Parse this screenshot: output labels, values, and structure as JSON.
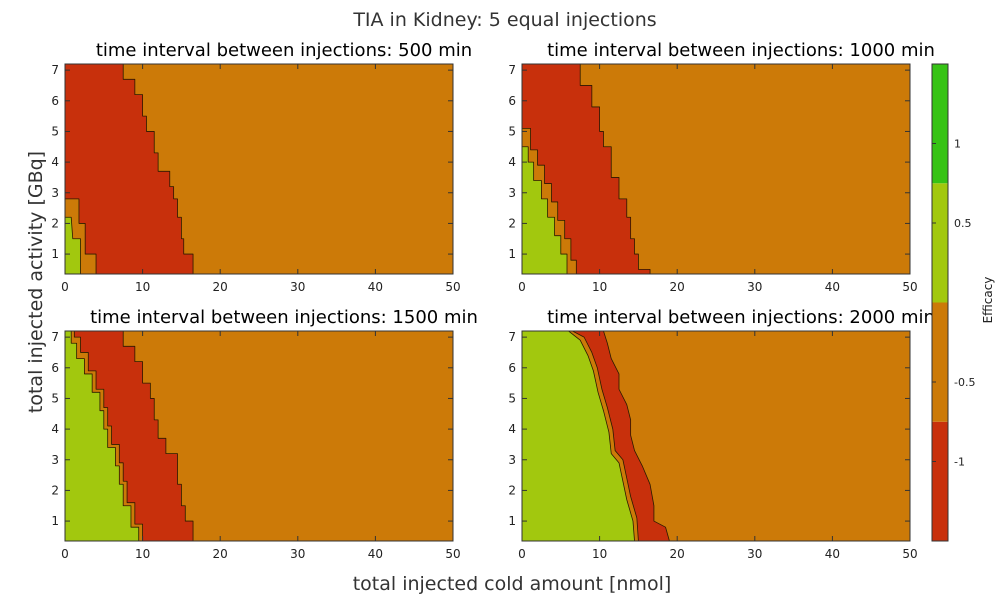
{
  "chart_data": {
    "type": "contour",
    "title": "TIA in Kidney: 5 equal injections",
    "xlabel": "total injected cold amount [nmol]",
    "ylabel": "total injected activity [GBq]",
    "xlim": [
      0,
      50
    ],
    "ylim": [
      0.35,
      7.2
    ],
    "xticks": [
      0,
      10,
      20,
      30,
      40,
      50
    ],
    "yticks": [
      1,
      2,
      3,
      4,
      5,
      6,
      7
    ],
    "grid": false,
    "colorbar": {
      "label": "Efficacy",
      "ticks": [
        "1",
        "0.5",
        "-0.5",
        "-1"
      ],
      "levels": [
        {
          "from": -1.5,
          "to": -0.75,
          "color": "#c8300c"
        },
        {
          "from": -0.75,
          "to": 0,
          "color": "#cc7a08"
        },
        {
          "from": 0,
          "to": 0.75,
          "color": "#a2c80e"
        },
        {
          "from": 0.75,
          "to": 1.5,
          "color": "#36c315"
        }
      ]
    },
    "region_colors": {
      "high_efficacy": "#a2c80e",
      "intermediate": "#cc7a08",
      "low_efficacy": "#c8300c"
    },
    "panels": [
      {
        "title": "time interval between injections: 500 min",
        "high_efficacy_boundary": [
          [
            0,
            0.35
          ],
          [
            2.0,
            0.35
          ],
          [
            2.0,
            1.5
          ],
          [
            1.0,
            1.5
          ],
          [
            0.8,
            2.2
          ],
          [
            0,
            2.2
          ]
        ],
        "inner_boundary": [
          [
            0,
            0.35
          ],
          [
            4.0,
            0.35
          ],
          [
            4.0,
            1.0
          ],
          [
            2.6,
            1.0
          ],
          [
            2.6,
            2.0
          ],
          [
            1.8,
            2.0
          ],
          [
            1.8,
            2.8
          ],
          [
            0,
            2.8
          ]
        ],
        "outer_boundary": [
          [
            16.5,
            0.35
          ],
          [
            16.5,
            1.0
          ],
          [
            15.3,
            1.0
          ],
          [
            15.3,
            1.5
          ],
          [
            15.0,
            1.5
          ],
          [
            15.0,
            2.2
          ],
          [
            14.5,
            2.2
          ],
          [
            14.5,
            2.8
          ],
          [
            14.0,
            2.8
          ],
          [
            14.0,
            3.2
          ],
          [
            13.5,
            3.2
          ],
          [
            13.5,
            3.7
          ],
          [
            12.0,
            3.7
          ],
          [
            12.0,
            4.3
          ],
          [
            11.5,
            4.3
          ],
          [
            11.5,
            5.0
          ],
          [
            10.5,
            5.0
          ],
          [
            10.5,
            5.5
          ],
          [
            10.0,
            5.5
          ],
          [
            10.0,
            6.2
          ],
          [
            9.0,
            6.2
          ],
          [
            9.0,
            6.7
          ],
          [
            7.5,
            6.7
          ],
          [
            7.5,
            7.2
          ]
        ]
      },
      {
        "title": "time interval between injections: 1000 min",
        "high_efficacy_boundary": [
          [
            0,
            0.35
          ],
          [
            5.8,
            0.35
          ],
          [
            5.8,
            1.0
          ],
          [
            5.0,
            1.0
          ],
          [
            5.0,
            1.6
          ],
          [
            4.2,
            1.6
          ],
          [
            4.2,
            2.2
          ],
          [
            3.3,
            2.2
          ],
          [
            3.3,
            2.8
          ],
          [
            2.5,
            2.8
          ],
          [
            2.5,
            3.4
          ],
          [
            1.5,
            3.4
          ],
          [
            1.5,
            4.0
          ],
          [
            0.8,
            4.0
          ],
          [
            0.8,
            4.5
          ],
          [
            0,
            4.5
          ]
        ],
        "inner_boundary": [
          [
            0,
            0.35
          ],
          [
            7.0,
            0.35
          ],
          [
            7.0,
            0.8
          ],
          [
            6.3,
            0.8
          ],
          [
            6.3,
            1.5
          ],
          [
            5.5,
            1.5
          ],
          [
            5.5,
            2.1
          ],
          [
            4.6,
            2.1
          ],
          [
            4.6,
            2.7
          ],
          [
            3.8,
            2.7
          ],
          [
            3.8,
            3.3
          ],
          [
            2.9,
            3.3
          ],
          [
            2.9,
            3.9
          ],
          [
            2.0,
            3.9
          ],
          [
            2.0,
            4.4
          ],
          [
            1.1,
            4.4
          ],
          [
            1.1,
            5.1
          ],
          [
            0,
            5.1
          ]
        ],
        "outer_boundary": [
          [
            16.5,
            0.35
          ],
          [
            16.5,
            0.5
          ],
          [
            15.0,
            0.5
          ],
          [
            15.0,
            1.0
          ],
          [
            14.5,
            1.0
          ],
          [
            14.5,
            1.5
          ],
          [
            14.0,
            1.5
          ],
          [
            14.0,
            2.2
          ],
          [
            13.5,
            2.2
          ],
          [
            13.5,
            2.8
          ],
          [
            12.5,
            2.8
          ],
          [
            12.5,
            3.5
          ],
          [
            11.5,
            3.5
          ],
          [
            11.5,
            4.5
          ],
          [
            10.5,
            4.5
          ],
          [
            10.5,
            5.0
          ],
          [
            10.0,
            5.0
          ],
          [
            10.0,
            5.8
          ],
          [
            9.0,
            5.8
          ],
          [
            9.0,
            6.5
          ],
          [
            7.5,
            6.5
          ],
          [
            7.5,
            7.2
          ]
        ]
      },
      {
        "title": "time interval between injections: 1500 min",
        "high_efficacy_boundary": [
          [
            0,
            0.35
          ],
          [
            9.5,
            0.35
          ],
          [
            9.5,
            0.8
          ],
          [
            8.5,
            0.8
          ],
          [
            8.5,
            1.5
          ],
          [
            7.5,
            1.5
          ],
          [
            7.5,
            2.2
          ],
          [
            7.0,
            2.2
          ],
          [
            7.0,
            2.8
          ],
          [
            6.5,
            2.8
          ],
          [
            6.5,
            3.4
          ],
          [
            5.5,
            3.4
          ],
          [
            5.5,
            4.0
          ],
          [
            5.0,
            4.0
          ],
          [
            5.0,
            4.6
          ],
          [
            4.5,
            4.6
          ],
          [
            4.5,
            5.2
          ],
          [
            3.5,
            5.2
          ],
          [
            3.5,
            5.8
          ],
          [
            2.5,
            5.8
          ],
          [
            2.5,
            6.3
          ],
          [
            1.5,
            6.3
          ],
          [
            1.5,
            6.8
          ],
          [
            0.8,
            6.8
          ],
          [
            0.8,
            7.2
          ],
          [
            0,
            7.2
          ]
        ],
        "inner_boundary": [
          [
            10.0,
            0.35
          ],
          [
            10.0,
            0.9
          ],
          [
            9.0,
            0.9
          ],
          [
            9.0,
            1.6
          ],
          [
            8.0,
            1.6
          ],
          [
            8.0,
            2.3
          ],
          [
            7.5,
            2.3
          ],
          [
            7.5,
            2.9
          ],
          [
            7.0,
            2.9
          ],
          [
            7.0,
            3.5
          ],
          [
            6.0,
            3.5
          ],
          [
            6.0,
            4.1
          ],
          [
            5.5,
            4.1
          ],
          [
            5.5,
            4.7
          ],
          [
            5.0,
            4.7
          ],
          [
            5.0,
            5.3
          ],
          [
            4.0,
            5.3
          ],
          [
            4.0,
            5.9
          ],
          [
            3.0,
            5.9
          ],
          [
            3.0,
            6.5
          ],
          [
            2.0,
            6.5
          ],
          [
            2.0,
            7.0
          ],
          [
            1.2,
            7.0
          ],
          [
            1.2,
            7.2
          ]
        ],
        "outer_boundary": [
          [
            16.5,
            0.35
          ],
          [
            16.5,
            1.0
          ],
          [
            15.5,
            1.0
          ],
          [
            15.5,
            1.5
          ],
          [
            15.0,
            1.5
          ],
          [
            15.0,
            2.2
          ],
          [
            14.5,
            2.2
          ],
          [
            14.5,
            3.2
          ],
          [
            13.0,
            3.2
          ],
          [
            13.0,
            3.7
          ],
          [
            12.0,
            3.7
          ],
          [
            12.0,
            4.3
          ],
          [
            11.5,
            4.3
          ],
          [
            11.5,
            5.0
          ],
          [
            11.0,
            5.0
          ],
          [
            11.0,
            5.5
          ],
          [
            10.0,
            5.5
          ],
          [
            10.0,
            6.2
          ],
          [
            9.0,
            6.2
          ],
          [
            9.0,
            6.7
          ],
          [
            7.5,
            6.7
          ],
          [
            7.5,
            7.2
          ]
        ]
      },
      {
        "title": "time interval between injections: 2000 min",
        "high_efficacy_boundary": [
          [
            0,
            0.35
          ],
          [
            14.5,
            0.35
          ],
          [
            14.3,
            1.0
          ],
          [
            13.5,
            1.7
          ],
          [
            13.0,
            2.3
          ],
          [
            12.5,
            2.9
          ],
          [
            11.5,
            3.2
          ],
          [
            11.2,
            3.9
          ],
          [
            10.5,
            4.6
          ],
          [
            9.8,
            5.2
          ],
          [
            9.2,
            5.9
          ],
          [
            8.5,
            6.4
          ],
          [
            7.5,
            6.9
          ],
          [
            6.0,
            7.2
          ],
          [
            0,
            7.2
          ]
        ],
        "inner_boundary": [
          [
            15.0,
            0.35
          ],
          [
            14.8,
            1.1
          ],
          [
            14.0,
            1.8
          ],
          [
            13.5,
            2.4
          ],
          [
            13.0,
            3.0
          ],
          [
            12.0,
            3.3
          ],
          [
            11.7,
            4.0
          ],
          [
            11.0,
            4.7
          ],
          [
            10.3,
            5.3
          ],
          [
            9.7,
            6.0
          ],
          [
            9.0,
            6.5
          ],
          [
            8.0,
            7.0
          ],
          [
            6.5,
            7.2
          ]
        ],
        "outer_boundary": [
          [
            19.0,
            0.35
          ],
          [
            18.5,
            0.8
          ],
          [
            17.0,
            1.0
          ],
          [
            17.0,
            1.5
          ],
          [
            16.5,
            2.2
          ],
          [
            15.5,
            2.8
          ],
          [
            14.5,
            3.3
          ],
          [
            14.0,
            3.8
          ],
          [
            14.0,
            4.3
          ],
          [
            13.5,
            4.8
          ],
          [
            12.5,
            5.3
          ],
          [
            12.5,
            5.8
          ],
          [
            11.5,
            6.3
          ],
          [
            11.0,
            6.8
          ],
          [
            10.5,
            7.2
          ]
        ]
      }
    ]
  }
}
